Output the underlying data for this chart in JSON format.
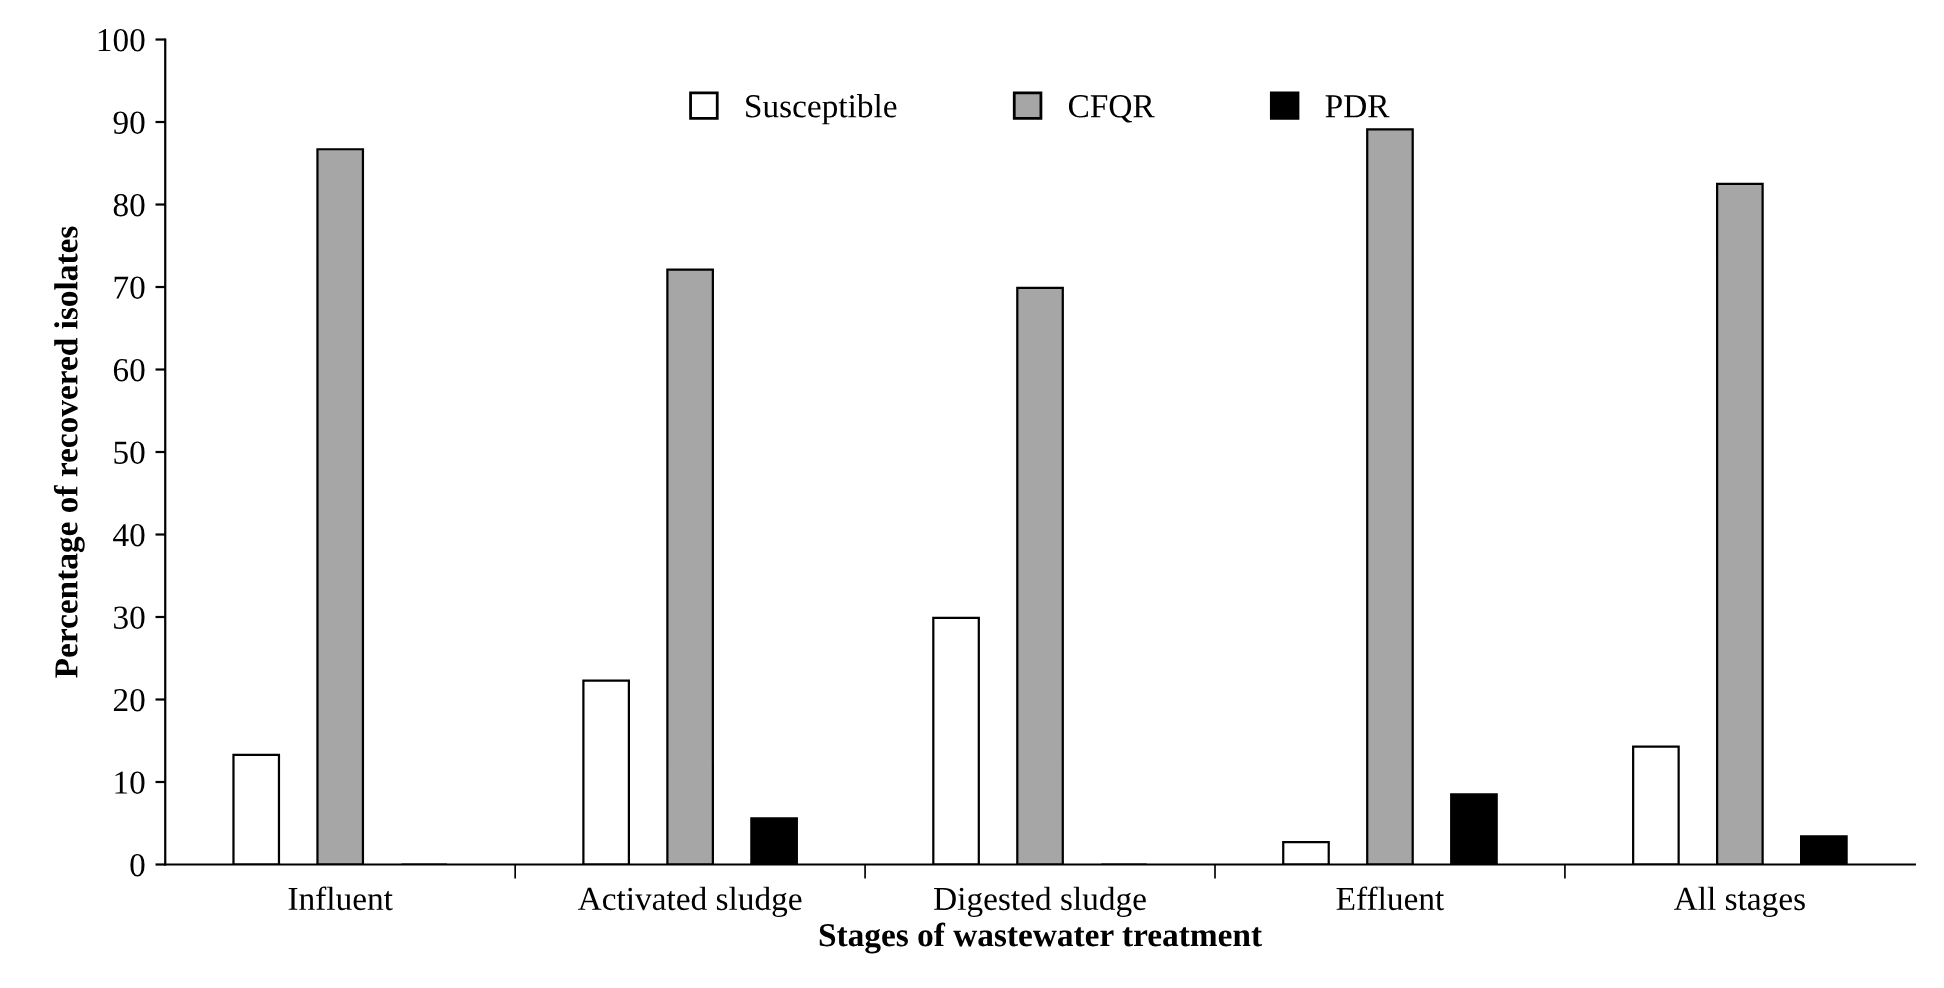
{
  "chart_data": {
    "type": "bar",
    "xlabel": "Stages of wastewater treatment",
    "ylabel": "Percentage of recovered isolates",
    "categories": [
      "Influent",
      "Activated sludge",
      "Digested sludge",
      "Effluent",
      "All stages"
    ],
    "series": [
      {
        "name": "Susceptible",
        "color": "#ffffff",
        "values": [
          13.3,
          22.3,
          29.9,
          2.7,
          14.3
        ]
      },
      {
        "name": "CFQR",
        "color": "#a6a6a6",
        "values": [
          86.7,
          72.1,
          69.9,
          89.1,
          82.5
        ]
      },
      {
        "name": "PDR",
        "color": "#000000",
        "values": [
          0,
          5.6,
          0,
          8.5,
          3.4
        ]
      }
    ],
    "ylim": [
      0,
      100
    ],
    "yticks": [
      0,
      10,
      20,
      30,
      40,
      50,
      60,
      70,
      80,
      90,
      100
    ],
    "grid": false,
    "legend": "top"
  }
}
